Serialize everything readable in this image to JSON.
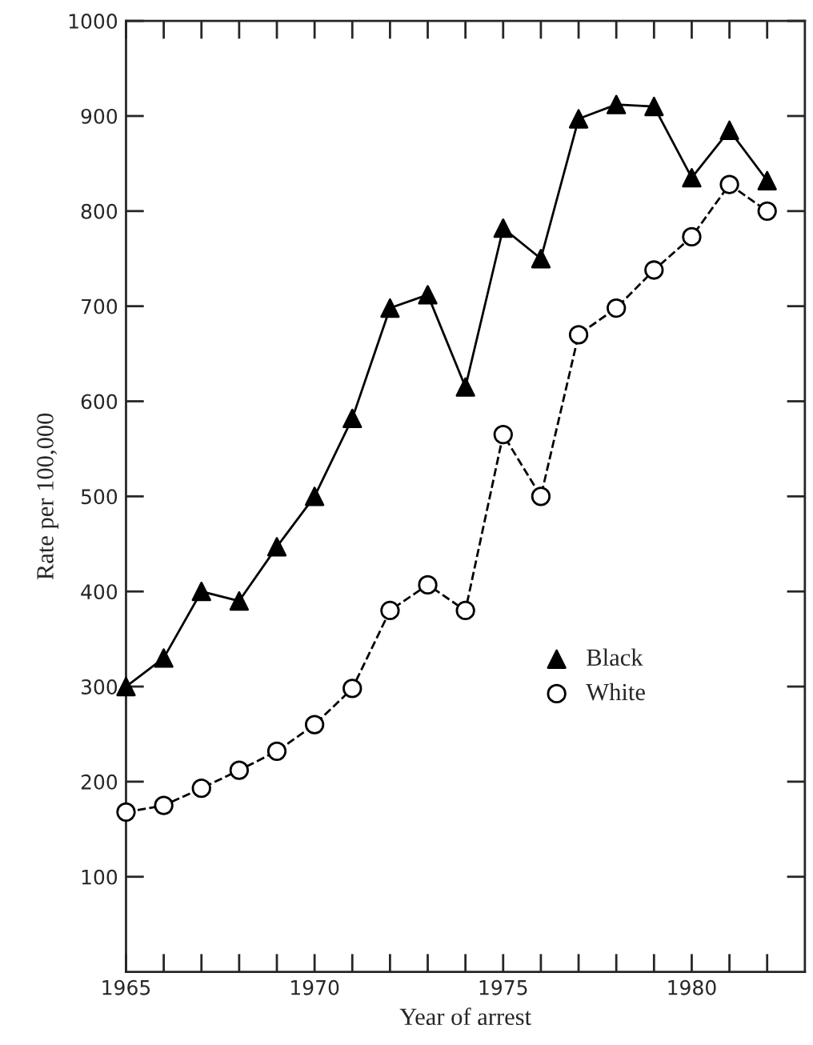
{
  "chart_data": {
    "type": "line",
    "xlabel": "Year of arrest",
    "ylabel": "Rate per 100,000",
    "x": [
      1965,
      1966,
      1967,
      1968,
      1969,
      1970,
      1971,
      1972,
      1973,
      1974,
      1975,
      1976,
      1977,
      1978,
      1979,
      1980,
      1981,
      1982
    ],
    "series": [
      {
        "name": "Black",
        "color": "#000000",
        "marker": "triangle",
        "line_style": "solid",
        "values": [
          300,
          330,
          400,
          390,
          447,
          500,
          582,
          698,
          712,
          615,
          782,
          750,
          897,
          912,
          910,
          835,
          885,
          832
        ]
      },
      {
        "name": "White",
        "color": "#000000",
        "marker": "circle",
        "line_style": "dashed",
        "values": [
          168,
          175,
          193,
          212,
          232,
          260,
          298,
          380,
          407,
          380,
          565,
          500,
          670,
          698,
          738,
          773,
          828,
          800
        ]
      }
    ],
    "xlim": [
      1965,
      1983
    ],
    "xticks": [
      1965,
      {
        "value": 1966,
        "label": null
      },
      {
        "value": 1967,
        "label": null
      },
      {
        "value": 1968,
        "label": null
      },
      {
        "value": 1969,
        "label": null
      },
      1970,
      {
        "value": 1971,
        "label": null
      },
      {
        "value": 1972,
        "label": null
      },
      {
        "value": 1973,
        "label": null
      },
      {
        "value": 1974,
        "label": null
      },
      1975,
      {
        "value": 1976,
        "label": null
      },
      {
        "value": 1977,
        "label": null
      },
      {
        "value": 1978,
        "label": null
      },
      {
        "value": 1979,
        "label": null
      },
      1980,
      {
        "value": 1981,
        "label": null
      },
      {
        "value": 1982,
        "label": null
      }
    ],
    "ylim": [
      0,
      1000
    ],
    "yticks": [
      100,
      200,
      300,
      400,
      500,
      600,
      700,
      800,
      900,
      1000
    ],
    "grid": false,
    "legend": "lower right"
  }
}
